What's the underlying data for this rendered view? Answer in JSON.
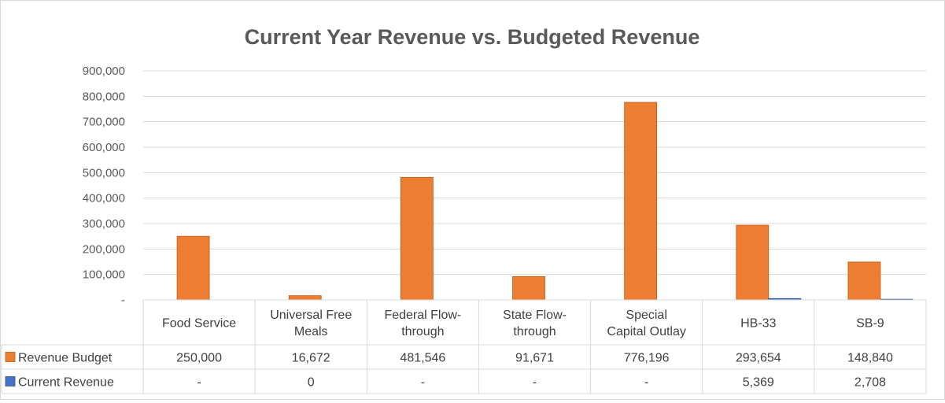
{
  "chart_data": {
    "type": "bar",
    "title": "Current Year Revenue vs. Budgeted Revenue",
    "categories": [
      [
        "Food Service"
      ],
      [
        "Universal Free",
        "Meals"
      ],
      [
        "Federal Flow-",
        "through"
      ],
      [
        "State Flow-",
        "through"
      ],
      [
        "Special",
        "Capital Outlay"
      ],
      [
        "HB-33"
      ],
      [
        "SB-9"
      ]
    ],
    "series": [
      {
        "name": "Revenue Budget",
        "color": "#ed7d31",
        "values": [
          250000,
          16672,
          481546,
          91671,
          776196,
          293654,
          148840
        ],
        "table_labels": [
          "250,000",
          "16,672",
          "481,546",
          "91,671",
          "776,196",
          "293,654",
          "148,840"
        ]
      },
      {
        "name": "Current Revenue",
        "color": "#4472c4",
        "values": [
          0,
          0,
          0,
          0,
          0,
          5369,
          2708
        ],
        "table_labels": [
          "-",
          "0",
          "-",
          "-",
          "-",
          "5,369",
          "2,708"
        ]
      }
    ],
    "ylim": [
      0,
      900000
    ],
    "yticks": [
      0,
      100000,
      200000,
      300000,
      400000,
      500000,
      600000,
      700000,
      800000,
      900000
    ],
    "ytick_labels": [
      "-",
      "100,000",
      "200,000",
      "300,000",
      "400,000",
      "500,000",
      "600,000",
      "700,000",
      "800,000",
      "900,000"
    ],
    "grid": true,
    "legend": "data-table"
  }
}
